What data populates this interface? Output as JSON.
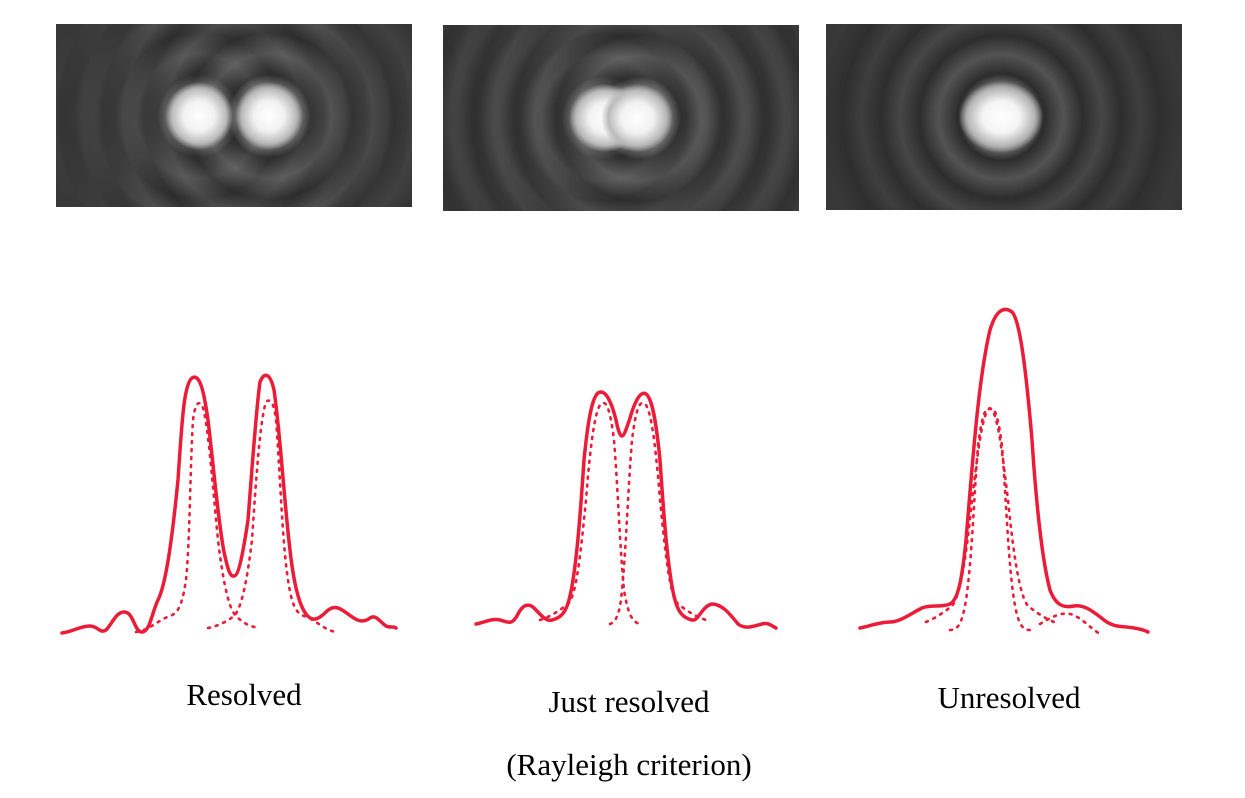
{
  "panels": [
    {
      "id": "resolved",
      "label": "Resolved",
      "note": ""
    },
    {
      "id": "just",
      "label": "Just resolved",
      "note": "(Rayleigh criterion)"
    },
    {
      "id": "unresolved",
      "label": "Unresolved",
      "note": ""
    }
  ],
  "colors": {
    "curve": "#ec1c38",
    "image_background": "#2a2a2a",
    "spot": "#ffffff"
  }
}
